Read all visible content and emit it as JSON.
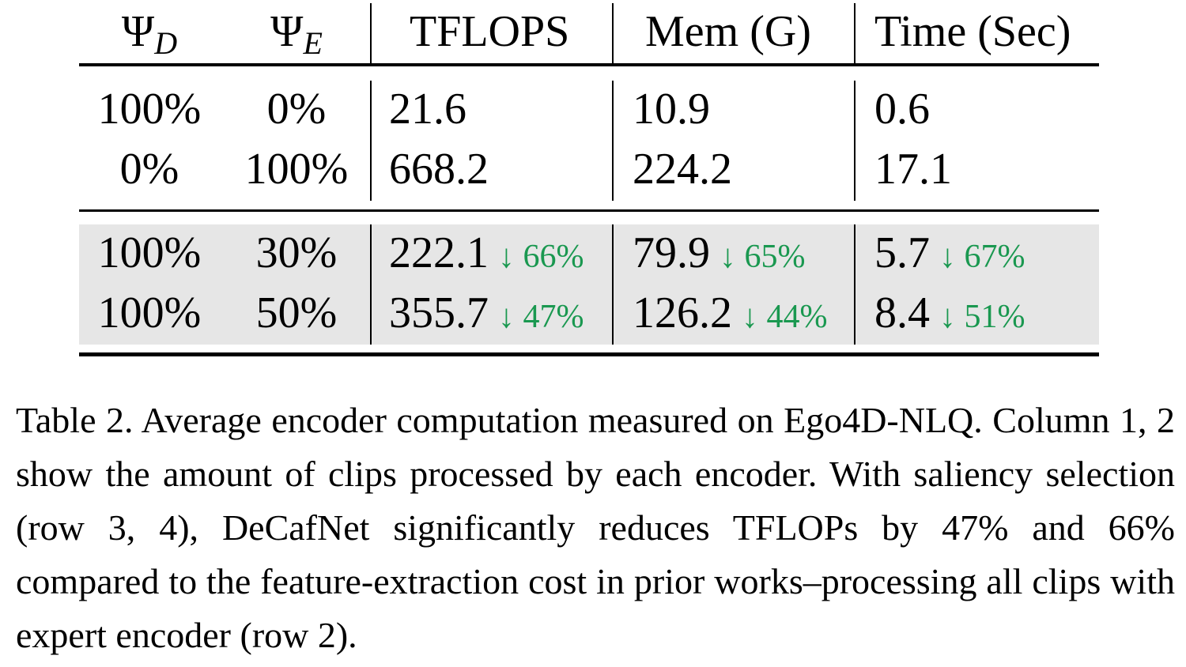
{
  "table": {
    "headers": {
      "psi_d": {
        "symbol": "Ψ",
        "sub": "D"
      },
      "psi_e": {
        "symbol": "Ψ",
        "sub": "E"
      },
      "tflops": "TFLOPS",
      "mem": "Mem (G)",
      "time": "Time (Sec)"
    },
    "rows": [
      {
        "psi_d": "100%",
        "psi_e": "0%",
        "tflops": "21.6",
        "mem": "10.9",
        "time": "0.6"
      },
      {
        "psi_d": "0%",
        "psi_e": "100%",
        "tflops": "668.2",
        "mem": "224.2",
        "time": "17.1"
      },
      {
        "psi_d": "100%",
        "psi_e": "30%",
        "tflops": "222.1",
        "tflops_delta": "↓ 66%",
        "mem": "79.9",
        "mem_delta": "↓ 65%",
        "time": "5.7",
        "time_delta": "↓ 67%"
      },
      {
        "psi_d": "100%",
        "psi_e": "50%",
        "tflops": "355.7",
        "tflops_delta": "↓ 47%",
        "mem": "126.2",
        "mem_delta": "↓ 44%",
        "time": "8.4",
        "time_delta": "↓ 51%"
      }
    ]
  },
  "colors": {
    "delta": "#1a9850",
    "highlight_bg": "#e6e6e6"
  },
  "caption": "Table 2. Average encoder computation measured on Ego4D-NLQ. Column 1, 2 show the amount of clips processed by each encoder. With saliency selection (row 3, 4), DeCafNet significantly reduces TFLOPs by 47% and 66% compared to the feature-extraction cost in prior works–processing all clips with expert encoder (row 2)."
}
